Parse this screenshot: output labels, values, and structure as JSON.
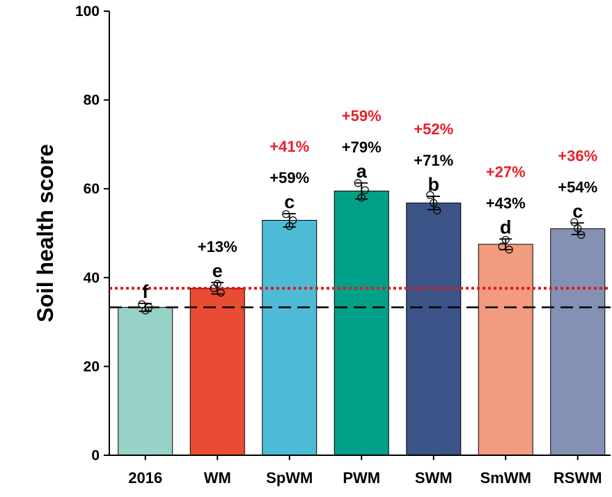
{
  "chart_data": {
    "type": "bar",
    "ylabel": "Soil health score",
    "xlabel": "",
    "ylim": [
      0,
      100
    ],
    "yticks": [
      0,
      20,
      40,
      60,
      80,
      100
    ],
    "categories": [
      "2016",
      "WM",
      "SpWM",
      "PWM",
      "SWM",
      "SmWM",
      "RSWM"
    ],
    "values": [
      33.3,
      37.6,
      52.9,
      59.5,
      56.8,
      47.5,
      51.0
    ],
    "errors": [
      0.9,
      1.3,
      1.5,
      1.8,
      1.5,
      1.2,
      1.3
    ],
    "points": [
      [
        34.0,
        32.6,
        33.3
      ],
      [
        37.6,
        38.6,
        36.6
      ],
      [
        54.3,
        51.6,
        52.9
      ],
      [
        61.3,
        58.0,
        59.7
      ],
      [
        58.6,
        56.8,
        55.1
      ],
      [
        47.0,
        48.5,
        46.3
      ],
      [
        52.5,
        51.1,
        49.6
      ]
    ],
    "bar_colors": [
      "#97d2c6",
      "#e84c33",
      "#4ebbd6",
      "#01a088",
      "#3c5488",
      "#f29b7f",
      "#8491b4"
    ],
    "letters": [
      "f",
      "e",
      "c",
      "a",
      "b",
      "d",
      "c"
    ],
    "increase_vs_2016": [
      "",
      "+13%",
      "+59%",
      "+79%",
      "+71%",
      "+43%",
      "+54%"
    ],
    "increase_vs_wm": [
      "",
      "",
      "+41%",
      "+59%",
      "+52%",
      "+27%",
      "+36%"
    ],
    "reference_lines": [
      {
        "value": 33.3,
        "style": "dashed",
        "color": "#000000"
      },
      {
        "value": 37.6,
        "style": "dotted",
        "color": "#e41a1c"
      }
    ],
    "red_color": "#e8202a",
    "grid": false
  }
}
